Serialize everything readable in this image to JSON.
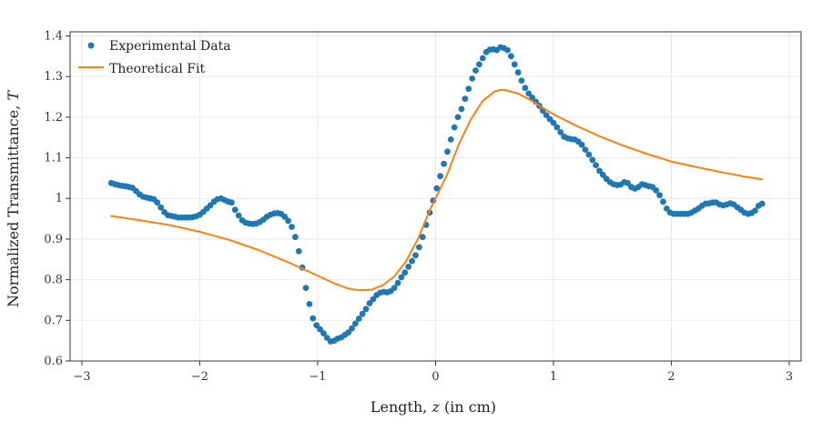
{
  "chart_data": {
    "type": "scatter",
    "xlabel": "Length, z (in cm)",
    "ylabel": "Normalized Transmittance, T",
    "xlim": [
      -3.1,
      3.1
    ],
    "ylim": [
      0.6,
      1.41
    ],
    "grid": true,
    "legend_position": "top-left",
    "x_ticks": [
      -3,
      -2,
      -1,
      0,
      1,
      2,
      3
    ],
    "x_tick_labels": [
      "−3",
      "−2",
      "−1",
      "0",
      "1",
      "2",
      "3"
    ],
    "y_ticks": [
      0.6,
      0.7,
      0.8,
      0.9,
      1.0,
      1.1,
      1.2,
      1.3,
      1.4
    ],
    "y_tick_labels": [
      "0.6",
      "0.7",
      "0.8",
      "0.9",
      "1",
      "1.1",
      "1.2",
      "1.3",
      "1.4"
    ],
    "series": [
      {
        "name": "Experimental Data",
        "kind": "markers",
        "color": "#1f77b4",
        "points": [
          [
            -2.75,
            1.038
          ],
          [
            -2.72,
            1.035
          ],
          [
            -2.69,
            1.033
          ],
          [
            -2.66,
            1.031
          ],
          [
            -2.63,
            1.03
          ],
          [
            -2.6,
            1.028
          ],
          [
            -2.57,
            1.026
          ],
          [
            -2.54,
            1.018
          ],
          [
            -2.51,
            1.01
          ],
          [
            -2.48,
            1.004
          ],
          [
            -2.45,
            1.002
          ],
          [
            -2.42,
            1.0
          ],
          [
            -2.39,
            0.998
          ],
          [
            -2.36,
            0.99
          ],
          [
            -2.33,
            0.978
          ],
          [
            -2.3,
            0.966
          ],
          [
            -2.27,
            0.959
          ],
          [
            -2.24,
            0.957
          ],
          [
            -2.21,
            0.955
          ],
          [
            -2.18,
            0.953
          ],
          [
            -2.15,
            0.953
          ],
          [
            -2.12,
            0.953
          ],
          [
            -2.09,
            0.953
          ],
          [
            -2.06,
            0.954
          ],
          [
            -2.03,
            0.956
          ],
          [
            -2.0,
            0.96
          ],
          [
            -1.97,
            0.967
          ],
          [
            -1.94,
            0.975
          ],
          [
            -1.91,
            0.983
          ],
          [
            -1.88,
            0.992
          ],
          [
            -1.85,
            0.998
          ],
          [
            -1.82,
            1.0
          ],
          [
            -1.79,
            0.996
          ],
          [
            -1.76,
            0.992
          ],
          [
            -1.73,
            0.99
          ],
          [
            -1.7,
            0.972
          ],
          [
            -1.67,
            0.958
          ],
          [
            -1.64,
            0.946
          ],
          [
            -1.61,
            0.94
          ],
          [
            -1.58,
            0.938
          ],
          [
            -1.55,
            0.937
          ],
          [
            -1.52,
            0.938
          ],
          [
            -1.49,
            0.942
          ],
          [
            -1.46,
            0.948
          ],
          [
            -1.43,
            0.955
          ],
          [
            -1.4,
            0.96
          ],
          [
            -1.37,
            0.963
          ],
          [
            -1.34,
            0.964
          ],
          [
            -1.31,
            0.962
          ],
          [
            -1.28,
            0.955
          ],
          [
            -1.25,
            0.945
          ],
          [
            -1.22,
            0.93
          ],
          [
            -1.19,
            0.905
          ],
          [
            -1.16,
            0.87
          ],
          [
            -1.13,
            0.83
          ],
          [
            -1.1,
            0.78
          ],
          [
            -1.07,
            0.74
          ],
          [
            -1.04,
            0.705
          ],
          [
            -1.01,
            0.688
          ],
          [
            -0.98,
            0.678
          ],
          [
            -0.95,
            0.668
          ],
          [
            -0.92,
            0.657
          ],
          [
            -0.89,
            0.648
          ],
          [
            -0.86,
            0.65
          ],
          [
            -0.83,
            0.655
          ],
          [
            -0.8,
            0.658
          ],
          [
            -0.77,
            0.664
          ],
          [
            -0.74,
            0.67
          ],
          [
            -0.71,
            0.68
          ],
          [
            -0.68,
            0.692
          ],
          [
            -0.65,
            0.704
          ],
          [
            -0.62,
            0.716
          ],
          [
            -0.59,
            0.728
          ],
          [
            -0.56,
            0.742
          ],
          [
            -0.53,
            0.752
          ],
          [
            -0.5,
            0.762
          ],
          [
            -0.47,
            0.768
          ],
          [
            -0.44,
            0.77
          ],
          [
            -0.41,
            0.769
          ],
          [
            -0.38,
            0.772
          ],
          [
            -0.35,
            0.78
          ],
          [
            -0.32,
            0.792
          ],
          [
            -0.29,
            0.806
          ],
          [
            -0.26,
            0.818
          ],
          [
            -0.23,
            0.832
          ],
          [
            -0.2,
            0.846
          ],
          [
            -0.17,
            0.86
          ],
          [
            -0.14,
            0.88
          ],
          [
            -0.11,
            0.905
          ],
          [
            -0.08,
            0.935
          ],
          [
            -0.05,
            0.965
          ],
          [
            -0.02,
            0.995
          ],
          [
            0.01,
            1.025
          ],
          [
            0.04,
            1.055
          ],
          [
            0.07,
            1.085
          ],
          [
            0.1,
            1.115
          ],
          [
            0.13,
            1.145
          ],
          [
            0.16,
            1.175
          ],
          [
            0.19,
            1.2
          ],
          [
            0.22,
            1.22
          ],
          [
            0.25,
            1.245
          ],
          [
            0.28,
            1.27
          ],
          [
            0.31,
            1.295
          ],
          [
            0.34,
            1.315
          ],
          [
            0.37,
            1.33
          ],
          [
            0.4,
            1.345
          ],
          [
            0.43,
            1.36
          ],
          [
            0.46,
            1.366
          ],
          [
            0.49,
            1.367
          ],
          [
            0.52,
            1.365
          ],
          [
            0.55,
            1.372
          ],
          [
            0.58,
            1.37
          ],
          [
            0.61,
            1.365
          ],
          [
            0.64,
            1.35
          ],
          [
            0.67,
            1.33
          ],
          [
            0.7,
            1.31
          ],
          [
            0.73,
            1.29
          ],
          [
            0.76,
            1.272
          ],
          [
            0.79,
            1.258
          ],
          [
            0.82,
            1.248
          ],
          [
            0.85,
            1.238
          ],
          [
            0.88,
            1.228
          ],
          [
            0.91,
            1.216
          ],
          [
            0.94,
            1.205
          ],
          [
            0.97,
            1.195
          ],
          [
            1.0,
            1.186
          ],
          [
            1.03,
            1.175
          ],
          [
            1.06,
            1.163
          ],
          [
            1.09,
            1.152
          ],
          [
            1.12,
            1.148
          ],
          [
            1.15,
            1.146
          ],
          [
            1.18,
            1.145
          ],
          [
            1.21,
            1.14
          ],
          [
            1.24,
            1.132
          ],
          [
            1.27,
            1.12
          ],
          [
            1.3,
            1.108
          ],
          [
            1.33,
            1.095
          ],
          [
            1.36,
            1.082
          ],
          [
            1.39,
            1.068
          ],
          [
            1.42,
            1.058
          ],
          [
            1.45,
            1.048
          ],
          [
            1.48,
            1.04
          ],
          [
            1.51,
            1.035
          ],
          [
            1.54,
            1.033
          ],
          [
            1.57,
            1.034
          ],
          [
            1.6,
            1.04
          ],
          [
            1.63,
            1.038
          ],
          [
            1.66,
            1.028
          ],
          [
            1.69,
            1.024
          ],
          [
            1.72,
            1.028
          ],
          [
            1.75,
            1.035
          ],
          [
            1.78,
            1.033
          ],
          [
            1.81,
            1.03
          ],
          [
            1.84,
            1.028
          ],
          [
            1.87,
            1.02
          ],
          [
            1.9,
            1.008
          ],
          [
            1.93,
            0.992
          ],
          [
            1.96,
            0.975
          ],
          [
            1.99,
            0.965
          ],
          [
            2.02,
            0.962
          ],
          [
            2.05,
            0.962
          ],
          [
            2.08,
            0.962
          ],
          [
            2.11,
            0.962
          ],
          [
            2.14,
            0.962
          ],
          [
            2.17,
            0.965
          ],
          [
            2.2,
            0.97
          ],
          [
            2.23,
            0.975
          ],
          [
            2.26,
            0.982
          ],
          [
            2.29,
            0.987
          ],
          [
            2.32,
            0.988
          ],
          [
            2.35,
            0.99
          ],
          [
            2.38,
            0.99
          ],
          [
            2.41,
            0.985
          ],
          [
            2.44,
            0.983
          ],
          [
            2.47,
            0.985
          ],
          [
            2.5,
            0.988
          ],
          [
            2.53,
            0.985
          ],
          [
            2.56,
            0.978
          ],
          [
            2.59,
            0.972
          ],
          [
            2.62,
            0.965
          ],
          [
            2.65,
            0.962
          ],
          [
            2.68,
            0.964
          ],
          [
            2.71,
            0.97
          ],
          [
            2.74,
            0.982
          ],
          [
            2.77,
            0.987
          ]
        ]
      },
      {
        "name": "Theoretical Fit",
        "kind": "line",
        "color": "#ff7f0e",
        "points": [
          [
            -2.75,
            0.957
          ],
          [
            -2.5,
            0.946
          ],
          [
            -2.25,
            0.934
          ],
          [
            -2.0,
            0.918
          ],
          [
            -1.75,
            0.898
          ],
          [
            -1.5,
            0.873
          ],
          [
            -1.25,
            0.843
          ],
          [
            -1.0,
            0.81
          ],
          [
            -0.85,
            0.79
          ],
          [
            -0.75,
            0.779
          ],
          [
            -0.65,
            0.774
          ],
          [
            -0.55,
            0.775
          ],
          [
            -0.45,
            0.786
          ],
          [
            -0.35,
            0.808
          ],
          [
            -0.25,
            0.845
          ],
          [
            -0.15,
            0.9
          ],
          [
            -0.05,
            0.97
          ],
          [
            0.0,
            1.0
          ],
          [
            0.1,
            1.06
          ],
          [
            0.2,
            1.135
          ],
          [
            0.3,
            1.195
          ],
          [
            0.4,
            1.24
          ],
          [
            0.5,
            1.263
          ],
          [
            0.55,
            1.267
          ],
          [
            0.6,
            1.266
          ],
          [
            0.7,
            1.258
          ],
          [
            0.8,
            1.243
          ],
          [
            0.9,
            1.225
          ],
          [
            1.0,
            1.207
          ],
          [
            1.2,
            1.178
          ],
          [
            1.4,
            1.152
          ],
          [
            1.6,
            1.129
          ],
          [
            1.8,
            1.109
          ],
          [
            2.0,
            1.091
          ],
          [
            2.2,
            1.078
          ],
          [
            2.4,
            1.066
          ],
          [
            2.6,
            1.055
          ],
          [
            2.77,
            1.047
          ]
        ]
      }
    ]
  }
}
